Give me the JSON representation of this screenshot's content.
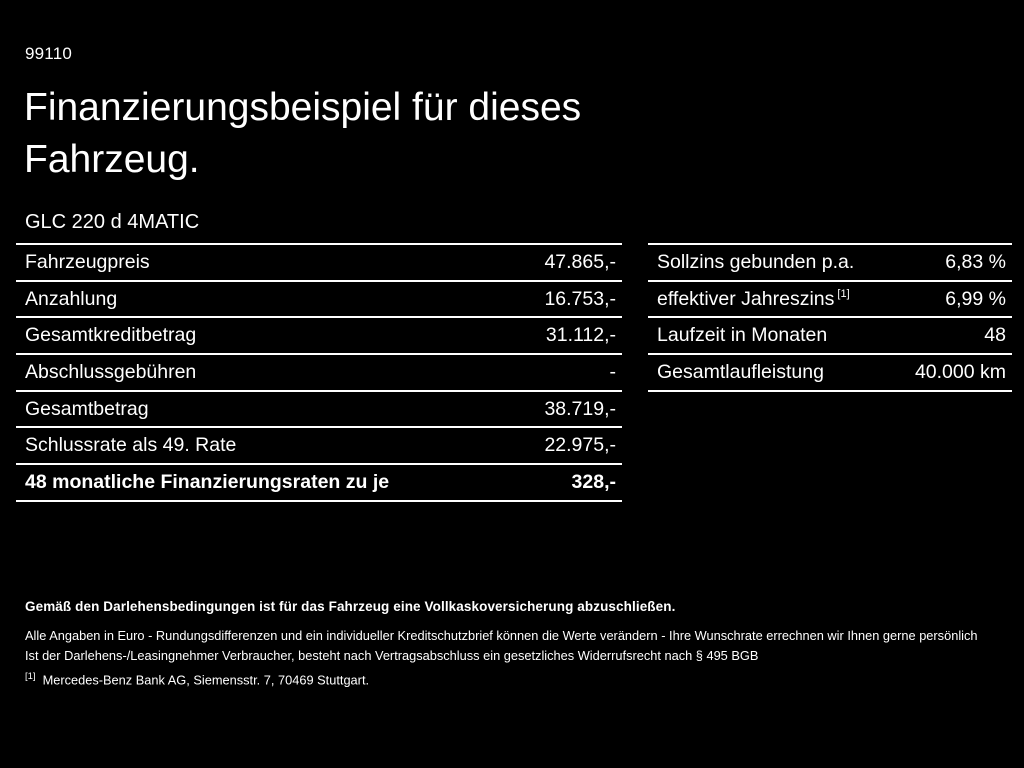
{
  "page": {
    "code": "99110",
    "title": "Finanzierungsbeispiel für dieses Fahrzeug.",
    "model": "GLC 220 d 4MATIC"
  },
  "left_table": {
    "rows": [
      {
        "label": "Fahrzeugpreis",
        "value": "47.865,-"
      },
      {
        "label": "Anzahlung",
        "value": "16.753,-"
      },
      {
        "label": "Gesamtkreditbetrag",
        "value": "31.112,-"
      },
      {
        "label": "Abschlussgebühren",
        "value": "-"
      },
      {
        "label": "Gesamtbetrag",
        "value": "38.719,-"
      },
      {
        "label": "Schlussrate als 49. Rate",
        "value": "22.975,-"
      },
      {
        "label": "48 monatliche Finanzierungsraten zu je",
        "value": "328,-"
      }
    ]
  },
  "right_table": {
    "rows": [
      {
        "label": "Sollzins gebunden p.a.",
        "sup": "",
        "value": "6,83 %"
      },
      {
        "label": "effektiver Jahreszins",
        "sup": "[1]",
        "value": "6,99 %"
      },
      {
        "label": "Laufzeit in Monaten",
        "sup": "",
        "value": "48"
      },
      {
        "label": "Gesamtlaufleistung",
        "sup": "",
        "value": "40.000 km"
      }
    ]
  },
  "footer": {
    "insurance_note": "Gemäß den Darlehensbedingungen ist für das Fahrzeug eine Vollkaskoversicherung abzuschließen.",
    "disclaimer_line1": "Alle Angaben in Euro - Rundungsdifferenzen und ein individueller Kreditschutzbrief können die Werte verändern - Ihre Wunschrate errechnen wir Ihnen gerne persönlich",
    "disclaimer_line2": "Ist der Darlehens-/Leasingnehmer Verbraucher, besteht nach Vertragsabschluss ein gesetzliches Widerrufsrecht nach § 495 BGB",
    "footnote_marker": "[1]",
    "footnote_text": "Mercedes-Benz Bank AG, Siemensstr. 7, 70469 Stuttgart."
  }
}
